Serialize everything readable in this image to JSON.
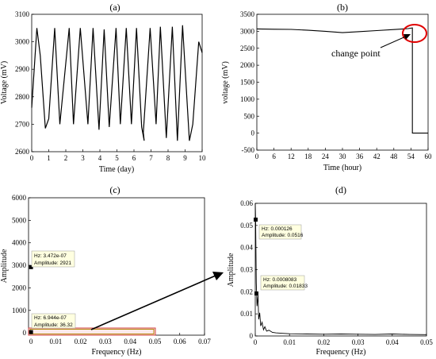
{
  "chart_data": [
    {
      "id": "a",
      "type": "line",
      "title": "(a)",
      "xlabel": "Time (day)",
      "ylabel": "Voltage (mV)",
      "xlim": [
        0,
        10
      ],
      "ylim": [
        2600,
        3100
      ],
      "xticks": [
        0,
        1,
        2,
        3,
        4,
        5,
        6,
        7,
        8,
        9,
        10
      ],
      "yticks": [
        2600,
        2700,
        2800,
        2900,
        3000,
        3100
      ],
      "grid": false,
      "series": [
        {
          "x": [
            0,
            0.3,
            0.5,
            0.8,
            1.0,
            1.35,
            1.65,
            2.2,
            2.45,
            2.85,
            3.3,
            3.6,
            3.95,
            4.25,
            4.55,
            4.95,
            5.2,
            5.55,
            5.85,
            6.15,
            6.45,
            6.6,
            6.55,
            6.95,
            7.3,
            7.55,
            7.9,
            8.25,
            8.55,
            8.85,
            9.25,
            9.45,
            9.8,
            10
          ],
          "y": [
            2760,
            3050,
            2950,
            2685,
            2720,
            3050,
            2700,
            3050,
            2700,
            3050,
            2700,
            3050,
            2680,
            3045,
            2690,
            3050,
            2700,
            3050,
            2700,
            3050,
            2690,
            2640,
            2670,
            3050,
            2700,
            3055,
            2650,
            3055,
            2640,
            3060,
            2640,
            2700,
            3000,
            2960
          ]
        }
      ]
    },
    {
      "id": "b",
      "type": "line",
      "title": "(b)",
      "xlabel": "Time (hour)",
      "ylabel": "voltage (mV)",
      "xlim": [
        0,
        60
      ],
      "ylim": [
        -500,
        3500
      ],
      "xticks": [
        0,
        6,
        12,
        18,
        24,
        30,
        36,
        42,
        48,
        54,
        60
      ],
      "yticks": [
        -500,
        0,
        500,
        1000,
        1500,
        2000,
        2500,
        3000,
        3500
      ],
      "grid": false,
      "series": [
        {
          "x": [
            0,
            6,
            12,
            18,
            24,
            30,
            36,
            42,
            48,
            53,
            54.5,
            54.5,
            60
          ],
          "y": [
            3070,
            3060,
            3055,
            3030,
            3000,
            2960,
            2990,
            3020,
            3050,
            3080,
            3100,
            0,
            0
          ]
        }
      ],
      "annotations": [
        {
          "text": "change point",
          "at": [
            54.5,
            3100
          ]
        }
      ]
    },
    {
      "id": "c",
      "type": "scatter",
      "title": "(c)",
      "xlabel": "Frequency (Hz)",
      "ylabel": "Amplitude",
      "xlim": [
        -0.001,
        0.07
      ],
      "ylim": [
        -100,
        6000
      ],
      "xticks": [
        0,
        0.01,
        0.02,
        0.03,
        0.04,
        0.05,
        0.06,
        0.07
      ],
      "yticks": [
        0,
        1000,
        2000,
        3000,
        4000,
        5000,
        6000
      ],
      "grid": false,
      "series": [
        {
          "x": [
            3.472e-07,
            6.944e-07
          ],
          "y": [
            2921,
            36.32
          ]
        }
      ],
      "datatips": [
        {
          "hz": "Hz: 3.472e-07",
          "amp": "Amplitude: 2921"
        },
        {
          "hz": "Hz: 6.944e-07",
          "amp": "Amplitude: 36.32"
        }
      ]
    },
    {
      "id": "d",
      "type": "line",
      "title": "(d)",
      "xlabel": "Frequency (Hz)",
      "ylabel": "Amplitude",
      "xlim": [
        0,
        0.05
      ],
      "ylim": [
        0,
        0.06
      ],
      "xticks": [
        0,
        0.01,
        0.02,
        0.03,
        0.04,
        0.05
      ],
      "yticks": [
        0,
        0.01,
        0.02,
        0.03,
        0.04,
        0.05,
        0.06
      ],
      "grid": false,
      "series": [
        {
          "x": [
            0,
            0.000126,
            0.0003,
            0.0005,
            0.0008083,
            0.001,
            0.0013,
            0.0016,
            0.002,
            0.0024,
            0.0028,
            0.0033,
            0.004,
            0.005,
            0.006,
            0.008,
            0.01,
            0.015,
            0.02,
            0.025,
            0.03,
            0.035,
            0.04,
            0.045,
            0.05
          ],
          "y": [
            0.06,
            0.0516,
            0.024,
            0.0135,
            0.01833,
            0.0075,
            0.0105,
            0.0045,
            0.0062,
            0.0028,
            0.0042,
            0.0022,
            0.0026,
            0.0016,
            0.0014,
            0.0012,
            0.001,
            0.0009,
            0.0008,
            0.0009,
            0.0008,
            0.0007,
            0.0009,
            0.0007,
            0.0006
          ]
        }
      ],
      "datatips": [
        {
          "hz": "Hz: 0.000126",
          "amp": "Amplitude: 0.0516"
        },
        {
          "hz": "Hz: 0.0008083",
          "amp": "Amplitude: 0.01833"
        }
      ]
    }
  ]
}
